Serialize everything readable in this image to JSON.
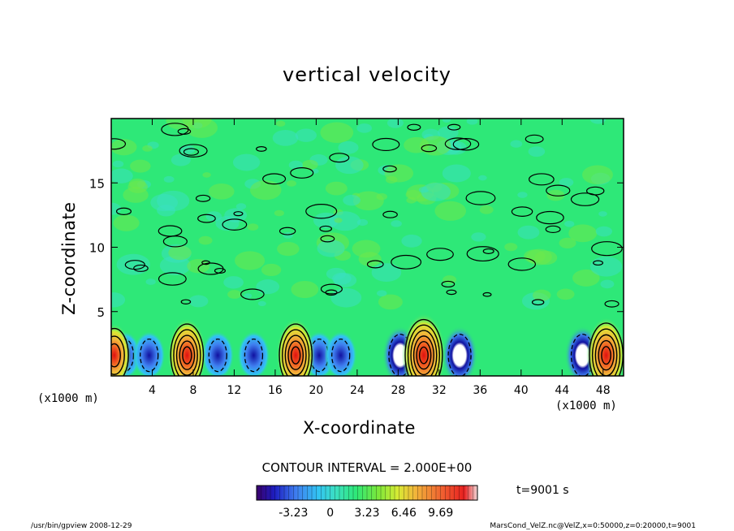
{
  "chart_data": {
    "type": "heatmap",
    "title": "vertical velocity",
    "xlabel": "X-coordinate",
    "ylabel": "Z-coordinate",
    "x_unit": "(x1000 m)",
    "y_unit": "(x1000 m)",
    "xlim": [
      0,
      50
    ],
    "ylim": [
      0,
      20
    ],
    "x_ticks": [
      4,
      8,
      12,
      16,
      20,
      24,
      28,
      32,
      36,
      40,
      44,
      48
    ],
    "y_ticks": [
      5,
      10,
      15
    ],
    "contour_interval_text": "CONTOUR INTERVAL = 2.000E+00",
    "colorbar_ticks": [
      "-3.23",
      "0",
      "3.23",
      "6.46",
      "9.69"
    ],
    "colorbar_range": [
      -6.46,
      12.92
    ],
    "time_label": "t=9001 s",
    "updraft_centers_x": [
      0.3,
      7.4,
      18.0,
      30.5,
      48.3
    ],
    "downdraft_centers_x": [
      1.3,
      3.7,
      10.4,
      13.9,
      20.3,
      22.4,
      28.2,
      34.0,
      46.0
    ],
    "peak_values": [
      6.5,
      9.0,
      9.0,
      11.5,
      9.5
    ],
    "colors": {
      "background_field": "#2ee878",
      "strong_up": "#e01010",
      "strong_down": "#1010a0"
    }
  },
  "footer": {
    "left": "/usr/bin/gpview   2008-12-29",
    "right": "MarsCond_VelZ.nc@VelZ,x=0:50000,z=0:20000,t=9001"
  }
}
